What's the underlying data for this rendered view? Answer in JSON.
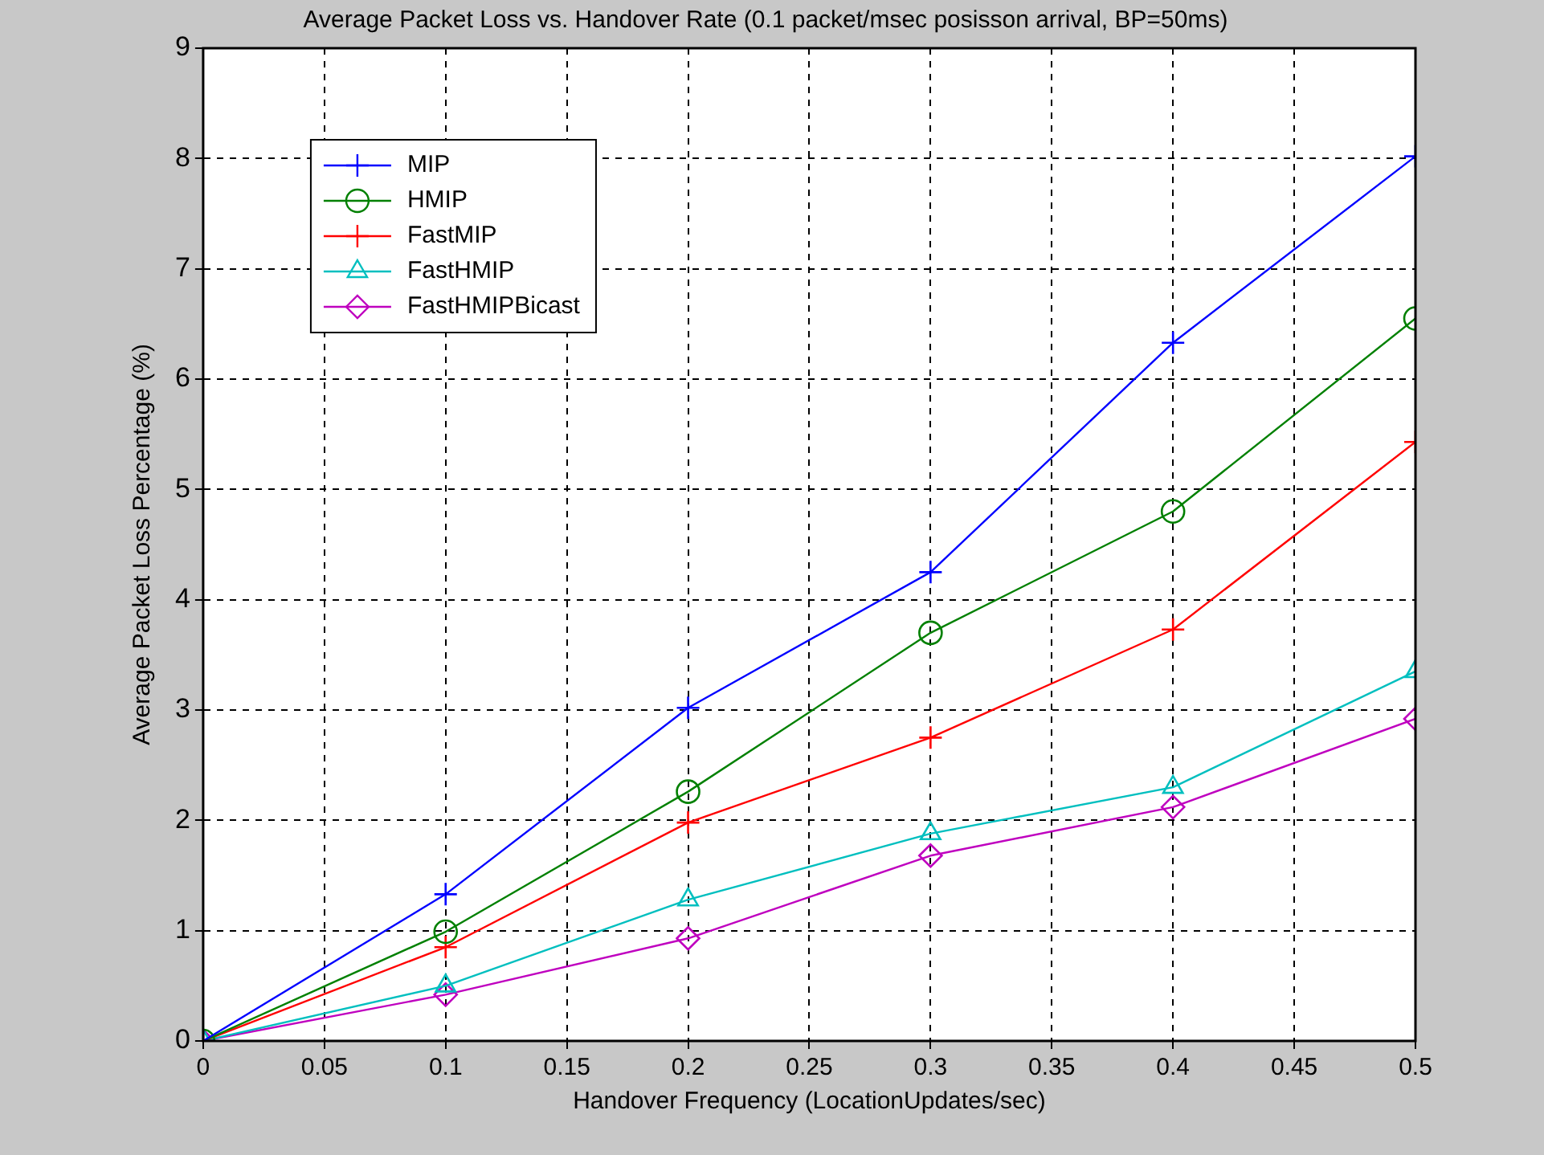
{
  "chart_data": {
    "type": "line",
    "title": "Average Packet Loss vs. Handover Rate (0.1 packet/msec posisson arrival, BP=50ms)",
    "xlabel": "Handover Frequency (LocationUpdates/sec)",
    "ylabel": "Average Packet Loss Percentage (%)",
    "x": [
      0,
      0.1,
      0.2,
      0.3,
      0.4,
      0.5
    ],
    "series": [
      {
        "name": "MIP",
        "color": "#0000ff",
        "marker": "cross",
        "values": [
          0,
          1.33,
          3.02,
          4.25,
          6.33,
          8.02
        ]
      },
      {
        "name": "HMIP",
        "color": "#008000",
        "marker": "circle",
        "values": [
          0,
          0.99,
          2.26,
          3.7,
          4.8,
          6.55
        ]
      },
      {
        "name": "FastMIP",
        "color": "#ff0000",
        "marker": "cross",
        "values": [
          0,
          0.85,
          1.98,
          2.75,
          3.73,
          5.43
        ]
      },
      {
        "name": "FastHMIP",
        "color": "#00bfbf",
        "marker": "triangle",
        "values": [
          0,
          0.5,
          1.28,
          1.88,
          2.3,
          3.35
        ]
      },
      {
        "name": "FastHMIPBicast",
        "color": "#bf00bf",
        "marker": "diamond",
        "values": [
          0,
          0.42,
          0.93,
          1.68,
          2.12,
          2.92
        ]
      }
    ],
    "xlim": [
      0,
      0.5
    ],
    "xticks": [
      0,
      0.05,
      0.1,
      0.15,
      0.2,
      0.25,
      0.3,
      0.35,
      0.4,
      0.45,
      0.5
    ],
    "ylim": [
      0,
      9
    ],
    "yticks": [
      0,
      1,
      2,
      3,
      4,
      5,
      6,
      7,
      8,
      9
    ],
    "grid": true,
    "legend": "top left",
    "line_style": "solid"
  }
}
